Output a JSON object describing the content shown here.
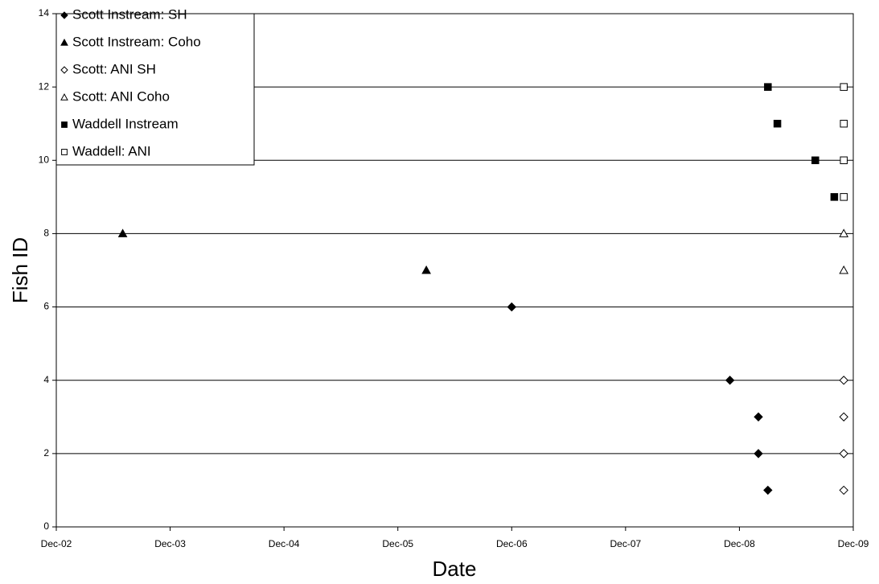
{
  "chart_data": {
    "type": "scatter",
    "x_label": "Date",
    "y_label": "Fish ID",
    "xlim": [
      "2002-12",
      "2009-12"
    ],
    "xticks": [
      {
        "value": "2002-12",
        "label": "Dec-02"
      },
      {
        "value": "2003-12",
        "label": "Dec-03"
      },
      {
        "value": "2004-12",
        "label": "Dec-04"
      },
      {
        "value": "2005-12",
        "label": "Dec-05"
      },
      {
        "value": "2006-12",
        "label": "Dec-06"
      },
      {
        "value": "2007-12",
        "label": "Dec-07"
      },
      {
        "value": "2008-12",
        "label": "Dec-08"
      },
      {
        "value": "2009-12",
        "label": "Dec-09"
      }
    ],
    "ylim": [
      0,
      14
    ],
    "yticks": [
      0,
      2,
      4,
      6,
      8,
      10,
      12,
      14
    ],
    "grid": true,
    "legend": "upper-left",
    "series": [
      {
        "name": "Scott Instream: SH",
        "color": "#000000",
        "marker": "diamond",
        "filled": true,
        "x": [
          "2006-12",
          "2008-11",
          "2009-02",
          "2009-02",
          "2009-03"
        ],
        "values": [
          6,
          4,
          3,
          2,
          1
        ]
      },
      {
        "name": "Scott Instream: Coho",
        "color": "#000000",
        "marker": "triangle",
        "filled": true,
        "x": [
          "2003-07",
          "2006-03"
        ],
        "values": [
          8,
          7
        ]
      },
      {
        "name": "Scott: ANI SH",
        "color": "#000000",
        "marker": "diamond",
        "filled": false,
        "x": [
          "2009-11",
          "2009-11",
          "2009-11",
          "2009-11"
        ],
        "values": [
          4,
          3,
          2,
          1
        ]
      },
      {
        "name": "Scott: ANI Coho",
        "color": "#000000",
        "marker": "triangle",
        "filled": false,
        "x": [
          "2009-11",
          "2009-11"
        ],
        "values": [
          8,
          7
        ]
      },
      {
        "name": "Waddell Instream",
        "color": "#000000",
        "marker": "square",
        "filled": true,
        "x": [
          "2009-03",
          "2009-04",
          "2009-08",
          "2009-10"
        ],
        "values": [
          12,
          11,
          10,
          9
        ]
      },
      {
        "name": "Waddell: ANI",
        "color": "#000000",
        "marker": "square",
        "filled": false,
        "x": [
          "2009-11",
          "2009-11",
          "2009-11",
          "2009-11"
        ],
        "values": [
          12,
          11,
          10,
          9
        ]
      }
    ]
  }
}
